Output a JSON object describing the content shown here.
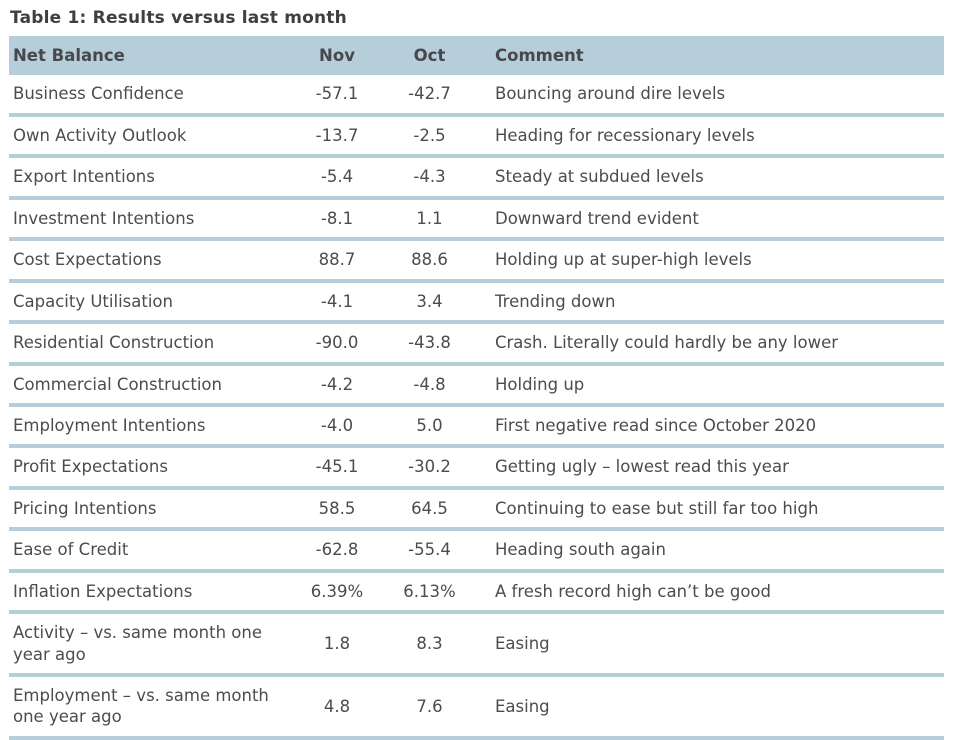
{
  "title": "Table 1: Results versus last month",
  "colors": {
    "accent_header_and_dividers": "#b6cdda",
    "title_text": "#3f3f41",
    "body_text": "#4c4c50",
    "background": "#ffffff"
  },
  "table": {
    "headers": {
      "label": "Net Balance",
      "nov": "Nov",
      "oct": "Oct",
      "comment": "Comment"
    },
    "rows": [
      {
        "label": "Business Confidence",
        "nov": "-57.1",
        "oct": "-42.7",
        "comment": "Bouncing around dire levels"
      },
      {
        "label": "Own Activity Outlook",
        "nov": "-13.7",
        "oct": "-2.5",
        "comment": "Heading for recessionary levels"
      },
      {
        "label": "Export Intentions",
        "nov": "-5.4",
        "oct": "-4.3",
        "comment": "Steady at subdued levels"
      },
      {
        "label": "Investment Intentions",
        "nov": "-8.1",
        "oct": "1.1",
        "comment": "Downward trend evident"
      },
      {
        "label": "Cost Expectations",
        "nov": "88.7",
        "oct": "88.6",
        "comment": "Holding up at super-high levels"
      },
      {
        "label": "Capacity Utilisation",
        "nov": "-4.1",
        "oct": "3.4",
        "comment": "Trending down"
      },
      {
        "label": "Residential Construction",
        "nov": "-90.0",
        "oct": "-43.8",
        "comment": "Crash. Literally could hardly be any lower"
      },
      {
        "label": "Commercial Construction",
        "nov": "-4.2",
        "oct": "-4.8",
        "comment": "Holding up"
      },
      {
        "label": "Employment Intentions",
        "nov": "-4.0",
        "oct": "5.0",
        "comment": "First negative read since October 2020"
      },
      {
        "label": "Profit Expectations",
        "nov": "-45.1",
        "oct": "-30.2",
        "comment": "Getting ugly – lowest read this year"
      },
      {
        "label": "Pricing Intentions",
        "nov": "58.5",
        "oct": "64.5",
        "comment": "Continuing to ease but still far too high"
      },
      {
        "label": "Ease of Credit",
        "nov": "-62.8",
        "oct": "-55.4",
        "comment": "Heading south again"
      },
      {
        "label": "Inflation Expectations",
        "nov": "6.39%",
        "oct": "6.13%",
        "comment": "A fresh record high can’t be good"
      },
      {
        "label": "Activity – vs. same month one year ago",
        "nov": "1.8",
        "oct": "8.3",
        "comment": "Easing"
      },
      {
        "label": "Employment – vs. same month one year ago",
        "nov": "4.8",
        "oct": "7.6",
        "comment": "Easing"
      }
    ]
  }
}
